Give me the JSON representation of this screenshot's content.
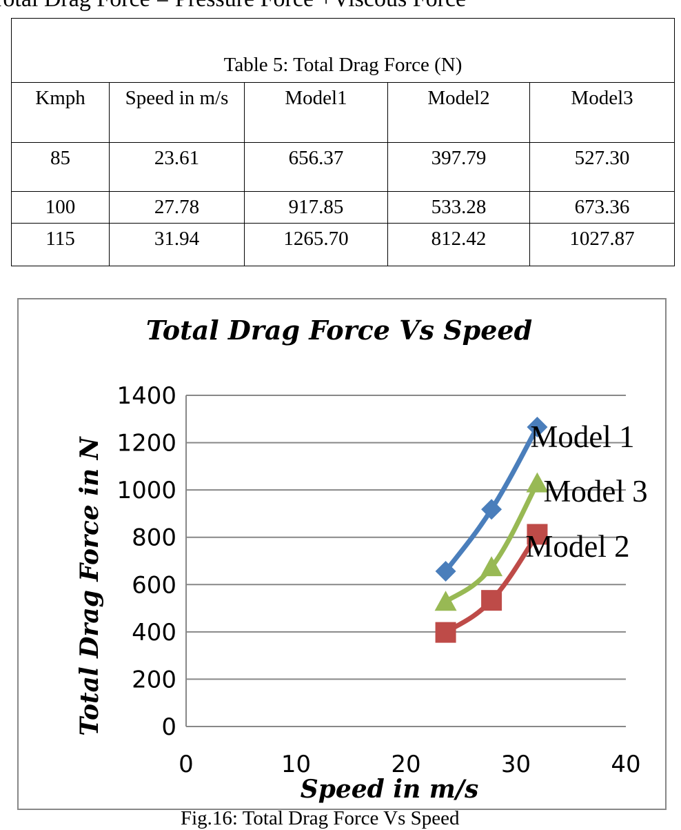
{
  "page_heading": "Total Drag Force = Pressure Force +Viscous Force",
  "table": {
    "caption": "Table 5: Total Drag Force (N)",
    "headers": [
      "Kmph",
      "Speed in m/s",
      "Model1",
      "Model2",
      "Model3"
    ],
    "rows": [
      [
        "85",
        "23.61",
        "656.37",
        "397.79",
        "527.30"
      ],
      [
        "100",
        "27.78",
        "917.85",
        "533.28",
        "673.36"
      ],
      [
        "115",
        "31.94",
        "1265.70",
        "812.42",
        "1027.87"
      ]
    ]
  },
  "figure_caption": "Fig.16: Total Drag Force Vs Speed",
  "chart_data": {
    "type": "line",
    "title": "Total Drag Force Vs Speed",
    "xlabel": "Speed in m/s",
    "ylabel": "Total Drag Force in N",
    "xlim": [
      0,
      40
    ],
    "ylim": [
      0,
      1400
    ],
    "xticks": [
      "0",
      "10",
      "20",
      "30",
      "40"
    ],
    "yticks": [
      "0",
      "200",
      "400",
      "600",
      "800",
      "1000",
      "1200",
      "1400"
    ],
    "grid": "horizontal",
    "x": [
      23.61,
      27.78,
      31.94
    ],
    "series": [
      {
        "name": "Model 1",
        "values": [
          656.37,
          917.85,
          1265.7
        ],
        "color": "#4a7ebb",
        "marker": "diamond"
      },
      {
        "name": "Model 2",
        "values": [
          397.79,
          533.28,
          812.42
        ],
        "color": "#be4b48",
        "marker": "square"
      },
      {
        "name": "Model 3",
        "values": [
          527.3,
          673.36,
          1027.87
        ],
        "color": "#98b954",
        "marker": "triangle"
      }
    ]
  }
}
